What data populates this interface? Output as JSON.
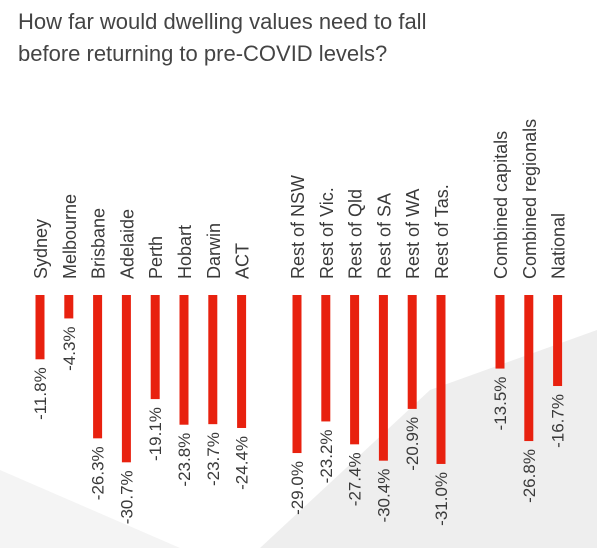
{
  "title_lines": [
    "How far would dwelling values need to fall",
    "before returning to pre-COVID levels?"
  ],
  "colors": {
    "bar": "#e8210f",
    "text": "#3a3a3a",
    "title": "#444444",
    "background": "#ffffff"
  },
  "chart_data": {
    "type": "bar",
    "orientation": "vertical-downward",
    "title": "How far would dwelling values need to fall before returning to pre-COVID levels?",
    "xlabel": "",
    "ylabel": "",
    "ylim": [
      -32,
      0
    ],
    "grid": false,
    "legend": "none",
    "categories": [
      "Sydney",
      "Melbourne",
      "Brisbane",
      "Adelaide",
      "Perth",
      "Hobart",
      "Darwin",
      "ACT",
      "Rest of NSW",
      "Rest of Vic.",
      "Rest of Qld",
      "Rest of SA",
      "Rest of WA",
      "Rest of Tas.",
      "Combined capitals",
      "Combined regionals",
      "National"
    ],
    "values": [
      -11.8,
      -4.3,
      -26.3,
      -30.7,
      -19.1,
      -23.8,
      -23.7,
      -24.4,
      -29.0,
      -23.2,
      -27.4,
      -30.4,
      -20.9,
      -31.0,
      -13.5,
      -26.8,
      -16.7
    ],
    "labels": [
      "-11.8%",
      "-4.3%",
      "-26.3%",
      "-30.7%",
      "-19.1%",
      "-23.8%",
      "-23.7%",
      "-24.4%",
      "-29.0%",
      "-23.2%",
      "-27.4%",
      "-30.4%",
      "-20.9%",
      "-31.0%",
      "-13.5%",
      "-26.8%",
      "-16.7%"
    ],
    "groups": [
      {
        "members": [
          0,
          1,
          2,
          3,
          4,
          5,
          6,
          7
        ]
      },
      {
        "members": [
          8,
          9,
          10,
          11,
          12,
          13
        ]
      },
      {
        "members": [
          14,
          15,
          16
        ]
      }
    ]
  }
}
